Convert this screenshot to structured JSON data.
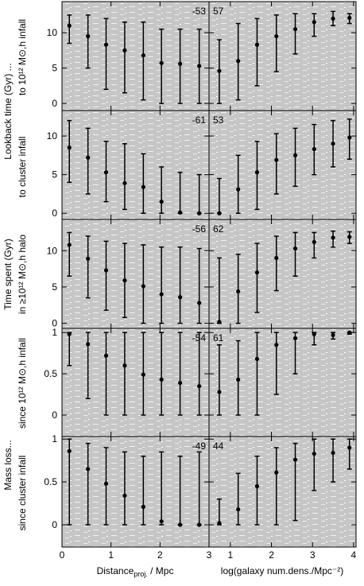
{
  "figure": {
    "ylabels": [
      "Lookback time (Gyr) ...",
      "Time spent (Gyr)",
      "Mass loss..."
    ],
    "sublabels": [
      "to 10¹² M⊙,h infall",
      "to cluster infall",
      "in ≥10¹² M⊙,h halo",
      "since 10¹² M⊙,h infall",
      "since cluster infall"
    ],
    "xlabel_left": {
      "main": "Distance",
      "sub": "proj.",
      "rest": " / Mpc"
    },
    "xlabel_right": "log(galaxy num.dens./Mpc⁻²)"
  },
  "chart_data": [
    {
      "type": "errorbar",
      "annotation": "-53",
      "xlim": [
        0,
        3
      ],
      "xticks": [
        0,
        1,
        2,
        3
      ],
      "ylim": [
        -1,
        14.4
      ],
      "yticks": [
        0,
        5,
        10
      ],
      "x": [
        0.15,
        0.53,
        0.9,
        1.28,
        1.66,
        2.03,
        2.41,
        2.8
      ],
      "values": [
        11,
        9.5,
        8.3,
        7.5,
        6.8,
        5.7,
        5.6,
        5.3
      ],
      "lower": [
        8.5,
        5,
        2,
        1.5,
        0.5,
        0,
        0,
        0
      ],
      "upper": [
        12.5,
        12.5,
        12,
        11.5,
        11.5,
        10.5,
        10.5,
        10.5
      ]
    },
    {
      "type": "errorbar",
      "annotation": "57",
      "xlim": [
        0.48,
        4.06
      ],
      "xticks": [
        1,
        2,
        3,
        4
      ],
      "ylim": [
        -1,
        14.4
      ],
      "yticks": [
        0,
        5,
        10
      ],
      "x": [
        0.73,
        1.19,
        1.65,
        2.12,
        2.58,
        3.04,
        3.5,
        3.9
      ],
      "values": [
        4.6,
        6,
        8.3,
        9.5,
        10.5,
        11.5,
        12,
        12.1
      ],
      "lower": [
        0,
        0.5,
        2.5,
        4.5,
        7,
        9.5,
        11,
        11.3
      ],
      "upper": [
        9,
        11.3,
        12,
        12.5,
        12.7,
        12.7,
        13,
        12.7
      ]
    },
    {
      "type": "errorbar",
      "annotation": "-61",
      "xlim": [
        0,
        3
      ],
      "xticks": [
        0,
        1,
        2,
        3
      ],
      "ylim": [
        -0.8,
        13.3
      ],
      "yticks": [
        0,
        5,
        10
      ],
      "x": [
        0.15,
        0.53,
        0.9,
        1.28,
        1.66,
        2.03,
        2.41,
        2.8
      ],
      "values": [
        8.5,
        7.2,
        5.3,
        3.9,
        3.4,
        1.5,
        0.1,
        0
      ],
      "lower": [
        4,
        2.5,
        1.5,
        0.5,
        0,
        0,
        0,
        0
      ],
      "upper": [
        12,
        11,
        9.3,
        9,
        7.7,
        6,
        5.3,
        5
      ]
    },
    {
      "type": "errorbar",
      "annotation": "53",
      "xlim": [
        0.48,
        4.06
      ],
      "xticks": [
        1,
        2,
        3,
        4
      ],
      "ylim": [
        -0.8,
        13.3
      ],
      "yticks": [
        0,
        5,
        10
      ],
      "x": [
        0.73,
        1.19,
        1.65,
        2.12,
        2.58,
        3.04,
        3.5,
        3.9
      ],
      "values": [
        0,
        3.1,
        5.3,
        6.9,
        7.5,
        8.3,
        9,
        9.8
      ],
      "lower": [
        0,
        0,
        0.5,
        2.5,
        3.5,
        5,
        6,
        7
      ],
      "upper": [
        4.5,
        7.5,
        9.3,
        10.3,
        11,
        11.5,
        12,
        12.2
      ]
    },
    {
      "type": "errorbar",
      "annotation": "-56",
      "xlim": [
        0,
        3
      ],
      "xticks": [
        0,
        1,
        2,
        3
      ],
      "ylim": [
        -0.7,
        14.3
      ],
      "yticks": [
        0,
        5,
        10
      ],
      "x": [
        0.15,
        0.53,
        0.9,
        1.28,
        1.66,
        2.03,
        2.41,
        2.8
      ],
      "values": [
        10.8,
        8.9,
        7.3,
        5.9,
        5.1,
        4,
        3.6,
        2.8
      ],
      "lower": [
        6.5,
        3.5,
        1.8,
        0.8,
        0,
        0,
        0,
        0
      ],
      "upper": [
        12.5,
        12,
        11.3,
        11,
        10.8,
        10.5,
        10.5,
        10.3
      ]
    },
    {
      "type": "errorbar",
      "annotation": "62",
      "xlim": [
        0.48,
        4.06
      ],
      "xticks": [
        1,
        2,
        3,
        4
      ],
      "ylim": [
        -0.7,
        14.3
      ],
      "yticks": [
        0,
        5,
        10
      ],
      "x": [
        0.73,
        1.19,
        1.65,
        2.12,
        2.58,
        3.04,
        3.5,
        3.9
      ],
      "values": [
        0.2,
        4.4,
        7,
        9,
        10.3,
        11.2,
        11.8,
        11.9
      ],
      "lower": [
        0,
        0,
        1.5,
        4.5,
        6.5,
        9,
        10.5,
        11
      ],
      "upper": [
        9,
        9.5,
        11,
        12,
        12.5,
        12.5,
        12.7,
        12.6
      ]
    },
    {
      "type": "errorbar",
      "annotation": "-54",
      "xlim": [
        0,
        3
      ],
      "xticks": [
        0,
        1,
        2,
        3
      ],
      "ylim": [
        -0.26,
        1.05
      ],
      "yticks": [
        0,
        0.5,
        1
      ],
      "x": [
        0.15,
        0.53,
        0.9,
        1.28,
        1.66,
        2.03,
        2.41,
        2.8
      ],
      "values": [
        0.98,
        0.86,
        0.72,
        0.6,
        0.49,
        0.43,
        0.39,
        0.35
      ],
      "lower": [
        0.6,
        0.2,
        0,
        0,
        0,
        0,
        0,
        0
      ],
      "upper": [
        1,
        1,
        1,
        1,
        1,
        1,
        1,
        1
      ]
    },
    {
      "type": "errorbar",
      "annotation": "61",
      "xlim": [
        0.48,
        4.06
      ],
      "xticks": [
        1,
        2,
        3,
        4
      ],
      "ylim": [
        -0.26,
        1.05
      ],
      "yticks": [
        0,
        0.5,
        1
      ],
      "x": [
        0.73,
        1.19,
        1.65,
        2.12,
        2.58,
        3.04,
        3.5,
        3.9
      ],
      "values": [
        0.28,
        0.43,
        0.68,
        0.85,
        0.93,
        0.98,
        0.97,
        1
      ],
      "lower": [
        0,
        0,
        0,
        0.25,
        0.5,
        0.85,
        0.92,
        0.98
      ],
      "upper": [
        0.85,
        0.9,
        1,
        1,
        1,
        1,
        1,
        1
      ]
    },
    {
      "type": "errorbar",
      "annotation": "-49",
      "xlim": [
        0,
        3
      ],
      "xticks": [
        0,
        1,
        2,
        3
      ],
      "ylim": [
        -0.26,
        1.03
      ],
      "yticks": [
        0,
        0.5,
        1
      ],
      "x": [
        0.15,
        0.53,
        0.9,
        1.28,
        1.66,
        2.03,
        2.41,
        2.8
      ],
      "values": [
        0.86,
        0.65,
        0.48,
        0.34,
        0.21,
        0.04,
        0,
        0
      ],
      "lower": [
        0,
        0,
        0,
        0,
        0,
        0,
        0,
        0
      ],
      "upper": [
        1,
        0.95,
        0.9,
        0.85,
        0.8,
        0.85,
        0.8,
        0.85
      ]
    },
    {
      "type": "errorbar",
      "annotation": "44",
      "xlim": [
        0.48,
        4.06
      ],
      "xticks": [
        1,
        2,
        3,
        4
      ],
      "ylim": [
        -0.26,
        1.03
      ],
      "yticks": [
        0,
        0.5,
        1
      ],
      "x": [
        0.73,
        1.19,
        1.65,
        2.12,
        2.58,
        3.04,
        3.5,
        3.9
      ],
      "values": [
        0.02,
        0.18,
        0.45,
        0.61,
        0.76,
        0.83,
        0.84,
        0.9
      ],
      "lower": [
        0,
        0,
        0,
        0,
        0.05,
        0.4,
        0.5,
        0.65
      ],
      "upper": [
        0.3,
        0.6,
        0.8,
        0.9,
        0.95,
        1,
        1,
        1
      ]
    }
  ]
}
